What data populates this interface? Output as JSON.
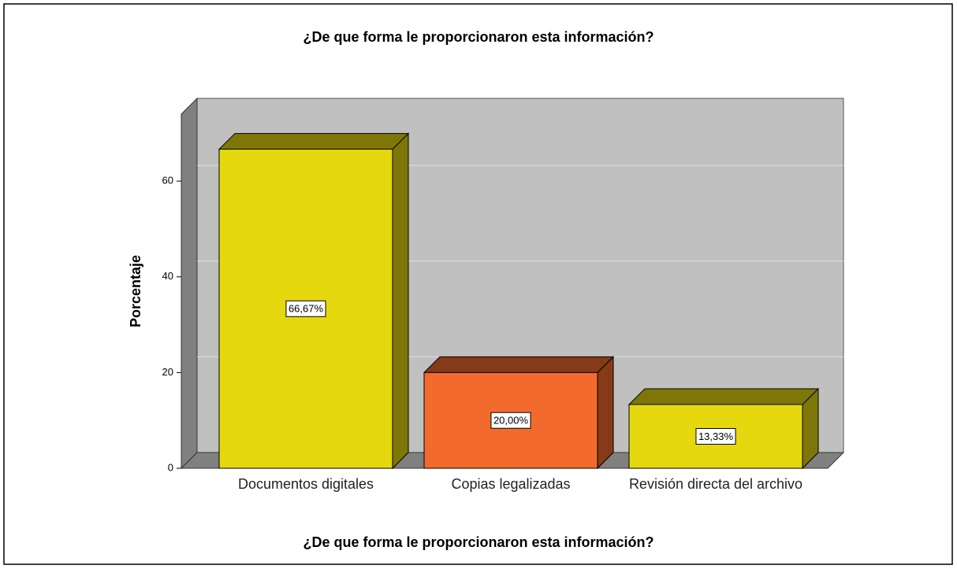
{
  "chart_data": {
    "type": "bar3d",
    "title": "¿De que forma le proporcionaron esta información?",
    "x_label": "¿De que forma le proporcionaron esta información?",
    "y_label": "Porcentaje",
    "categories": [
      "Documentos digitales",
      "Copias legalizadas",
      "Revisión directa del archivo"
    ],
    "values": [
      66.67,
      20.0,
      13.33
    ],
    "value_labels": [
      "66,67%",
      "20,00%",
      "13,33%"
    ],
    "colors": [
      "#e5d80e",
      "#f26b2c",
      "#e5d80e"
    ],
    "ylim": [
      0,
      74
    ],
    "yticks": [
      0,
      20,
      40,
      60
    ],
    "grid": true
  }
}
